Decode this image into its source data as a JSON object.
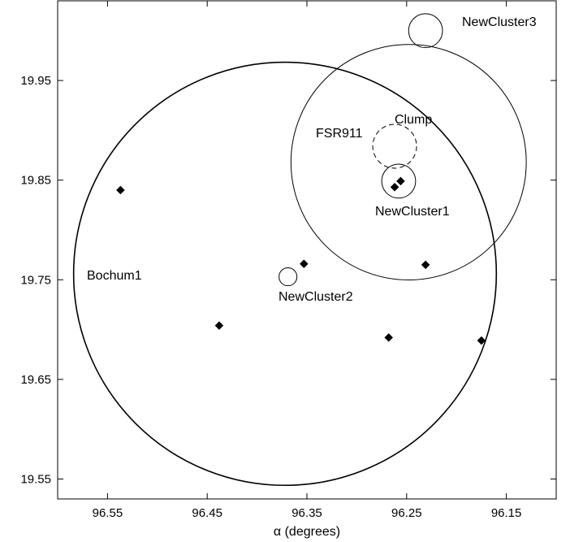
{
  "chart_data": {
    "type": "scatter",
    "xlabel": "α (degrees)",
    "ylabel": "",
    "xlim": [
      96.6,
      96.1
    ],
    "ylim": [
      19.53,
      20.03
    ],
    "x_ticks": [
      "96.55",
      "96.45",
      "96.35",
      "96.25",
      "96.15"
    ],
    "y_ticks": [
      "19.55",
      "19.65",
      "19.75",
      "19.85",
      "19.95"
    ],
    "grid": false,
    "points": [
      {
        "x": 96.537,
        "y": 19.84
      },
      {
        "x": 96.438,
        "y": 19.704
      },
      {
        "x": 96.353,
        "y": 19.766
      },
      {
        "x": 96.268,
        "y": 19.692
      },
      {
        "x": 96.262,
        "y": 19.843
      },
      {
        "x": 96.256,
        "y": 19.849
      },
      {
        "x": 96.231,
        "y": 19.765
      },
      {
        "x": 96.175,
        "y": 19.689
      }
    ],
    "regions": [
      {
        "name": "Bochum1",
        "cx": 96.372,
        "cy": 19.756,
        "r": 0.212,
        "style": "solid"
      },
      {
        "name": "FSR911",
        "cx": 96.248,
        "cy": 19.868,
        "r": 0.118,
        "style": "solid"
      },
      {
        "name": "Clump",
        "cx": 96.262,
        "cy": 19.884,
        "r": 0.022,
        "style": "dashed"
      },
      {
        "name": "NewCluster1",
        "cx": 96.258,
        "cy": 19.849,
        "r": 0.017,
        "style": "solid"
      },
      {
        "name": "NewCluster2",
        "cx": 96.369,
        "cy": 19.753,
        "r": 0.009,
        "style": "solid"
      },
      {
        "name": "NewCluster3",
        "cx": 96.231,
        "cy": 20.0,
        "r": 0.017,
        "style": "solid"
      }
    ],
    "annotations": [
      {
        "text": "Bochum1",
        "for": "Bochum1"
      },
      {
        "text": "FSR911",
        "for": "FSR911"
      },
      {
        "text": "Clump",
        "for": "Clump"
      },
      {
        "text": "NewCluster1",
        "for": "NewCluster1"
      },
      {
        "text": "NewCluster2",
        "for": "NewCluster2"
      },
      {
        "text": "NewCluster3",
        "for": "NewCluster3"
      }
    ]
  }
}
